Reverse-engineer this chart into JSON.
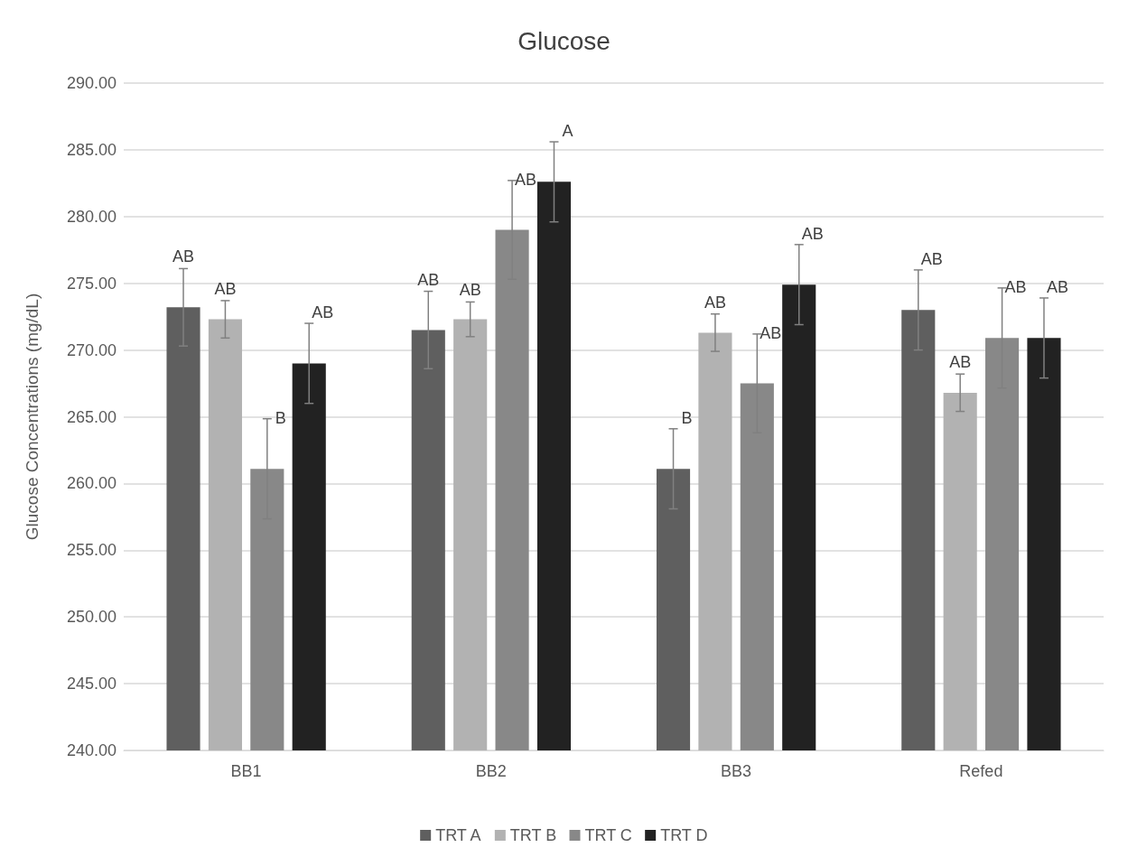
{
  "chart_data": {
    "type": "bar",
    "title": "Glucose",
    "ylabel": "Glucose Concentrations (mg/dL)",
    "categories": [
      "BB1",
      "BB2",
      "BB3",
      "Refed"
    ],
    "series": [
      {
        "name": "TRT A",
        "color": "#5f5f5f",
        "values": [
          273.2,
          271.5,
          261.1,
          273.0
        ],
        "errors": [
          2.9,
          2.9,
          3.0,
          3.0
        ],
        "value_labels": [
          "AB",
          "AB",
          "B",
          "AB"
        ]
      },
      {
        "name": "TRT B",
        "color": "#b2b2b2",
        "values": [
          272.3,
          272.3,
          271.3,
          266.8
        ],
        "errors": [
          1.4,
          1.3,
          1.4,
          1.4
        ],
        "value_labels": [
          "AB",
          "AB",
          "AB",
          "AB"
        ]
      },
      {
        "name": "TRT C",
        "color": "#888888",
        "values": [
          261.1,
          279.0,
          267.5,
          270.9
        ],
        "errors": [
          3.75,
          3.7,
          3.7,
          3.75
        ],
        "value_labels": [
          "B",
          "AB",
          "AB",
          "AB"
        ]
      },
      {
        "name": "TRT D",
        "color": "#222222",
        "values": [
          269.0,
          282.6,
          274.9,
          270.9
        ],
        "errors": [
          3.0,
          3.0,
          3.0,
          3.0
        ],
        "value_labels": [
          "AB",
          "A",
          "AB",
          "AB"
        ]
      }
    ],
    "ylim": [
      240,
      290
    ],
    "yticks": [
      {
        "value": 240,
        "label": "240.00"
      },
      {
        "value": 245,
        "label": "245.00"
      },
      {
        "value": 250,
        "label": "250.00"
      },
      {
        "value": 255,
        "label": "255.00"
      },
      {
        "value": 260,
        "label": "260.00"
      },
      {
        "value": 265,
        "label": "265.00"
      },
      {
        "value": 270,
        "label": "270.00"
      },
      {
        "value": 275,
        "label": "275.00"
      },
      {
        "value": 280,
        "label": "280.00"
      },
      {
        "value": 285,
        "label": "285.00"
      },
      {
        "value": 290,
        "label": "290.00"
      }
    ],
    "grid": "y",
    "legend": "bottom"
  }
}
